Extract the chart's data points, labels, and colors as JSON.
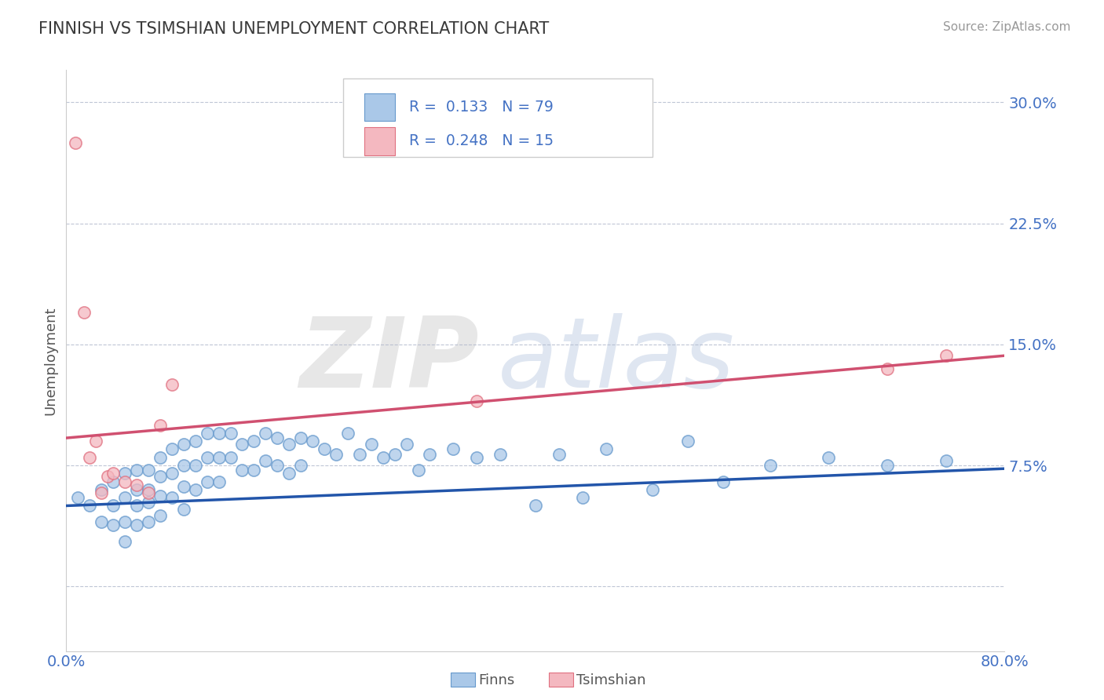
{
  "title": "FINNISH VS TSIMSHIAN UNEMPLOYMENT CORRELATION CHART",
  "source_text": "Source: ZipAtlas.com",
  "ylabel": "Unemployment",
  "xlim": [
    0.0,
    0.8
  ],
  "ylim": [
    -0.04,
    0.32
  ],
  "yticks": [
    0.0,
    0.075,
    0.15,
    0.225,
    0.3
  ],
  "ytick_labels": [
    "",
    "7.5%",
    "15.0%",
    "22.5%",
    "30.0%"
  ],
  "xticks": [
    0.0,
    0.8
  ],
  "xtick_labels": [
    "0.0%",
    "80.0%"
  ],
  "title_color": "#3a3a3a",
  "axis_label_color": "#555555",
  "tick_color": "#4472c4",
  "grid_color": "#b0b8cc",
  "background_color": "#ffffff",
  "watermark_zip": "ZIP",
  "watermark_atlas": "atlas",
  "legend_label1": "Finns",
  "legend_label2": "Tsimshian",
  "finns_color": "#aac8e8",
  "finns_edge": "#6699cc",
  "tsimshian_color": "#f4b8c0",
  "tsimshian_edge": "#e07080",
  "finn_line_color": "#2255aa",
  "tsim_line_color": "#d05070",
  "finns_x": [
    0.01,
    0.02,
    0.03,
    0.03,
    0.04,
    0.04,
    0.04,
    0.05,
    0.05,
    0.05,
    0.05,
    0.06,
    0.06,
    0.06,
    0.06,
    0.07,
    0.07,
    0.07,
    0.07,
    0.08,
    0.08,
    0.08,
    0.08,
    0.09,
    0.09,
    0.09,
    0.1,
    0.1,
    0.1,
    0.1,
    0.11,
    0.11,
    0.11,
    0.12,
    0.12,
    0.12,
    0.13,
    0.13,
    0.13,
    0.14,
    0.14,
    0.15,
    0.15,
    0.16,
    0.16,
    0.17,
    0.17,
    0.18,
    0.18,
    0.19,
    0.19,
    0.2,
    0.2,
    0.21,
    0.22,
    0.23,
    0.24,
    0.25,
    0.26,
    0.27,
    0.28,
    0.29,
    0.3,
    0.31,
    0.33,
    0.35,
    0.37,
    0.4,
    0.42,
    0.44,
    0.46,
    0.5,
    0.53,
    0.56,
    0.6,
    0.65,
    0.7,
    0.75
  ],
  "finns_y": [
    0.055,
    0.05,
    0.06,
    0.04,
    0.065,
    0.05,
    0.038,
    0.07,
    0.055,
    0.04,
    0.028,
    0.072,
    0.06,
    0.05,
    0.038,
    0.072,
    0.06,
    0.052,
    0.04,
    0.08,
    0.068,
    0.056,
    0.044,
    0.085,
    0.07,
    0.055,
    0.088,
    0.075,
    0.062,
    0.048,
    0.09,
    0.075,
    0.06,
    0.095,
    0.08,
    0.065,
    0.095,
    0.08,
    0.065,
    0.095,
    0.08,
    0.088,
    0.072,
    0.09,
    0.072,
    0.095,
    0.078,
    0.092,
    0.075,
    0.088,
    0.07,
    0.092,
    0.075,
    0.09,
    0.085,
    0.082,
    0.095,
    0.082,
    0.088,
    0.08,
    0.082,
    0.088,
    0.072,
    0.082,
    0.085,
    0.08,
    0.082,
    0.05,
    0.082,
    0.055,
    0.085,
    0.06,
    0.09,
    0.065,
    0.075,
    0.08,
    0.075,
    0.078
  ],
  "tsimshian_x": [
    0.008,
    0.015,
    0.02,
    0.025,
    0.03,
    0.035,
    0.04,
    0.05,
    0.06,
    0.07,
    0.08,
    0.09,
    0.35,
    0.7,
    0.75
  ],
  "tsimshian_y": [
    0.275,
    0.17,
    0.08,
    0.09,
    0.058,
    0.068,
    0.07,
    0.065,
    0.063,
    0.058,
    0.1,
    0.125,
    0.115,
    0.135,
    0.143
  ],
  "finn_trend_x": [
    0.0,
    0.8
  ],
  "finn_trend_y": [
    0.05,
    0.073
  ],
  "tsim_trend_x": [
    0.0,
    0.8
  ],
  "tsim_trend_y": [
    0.092,
    0.143
  ]
}
